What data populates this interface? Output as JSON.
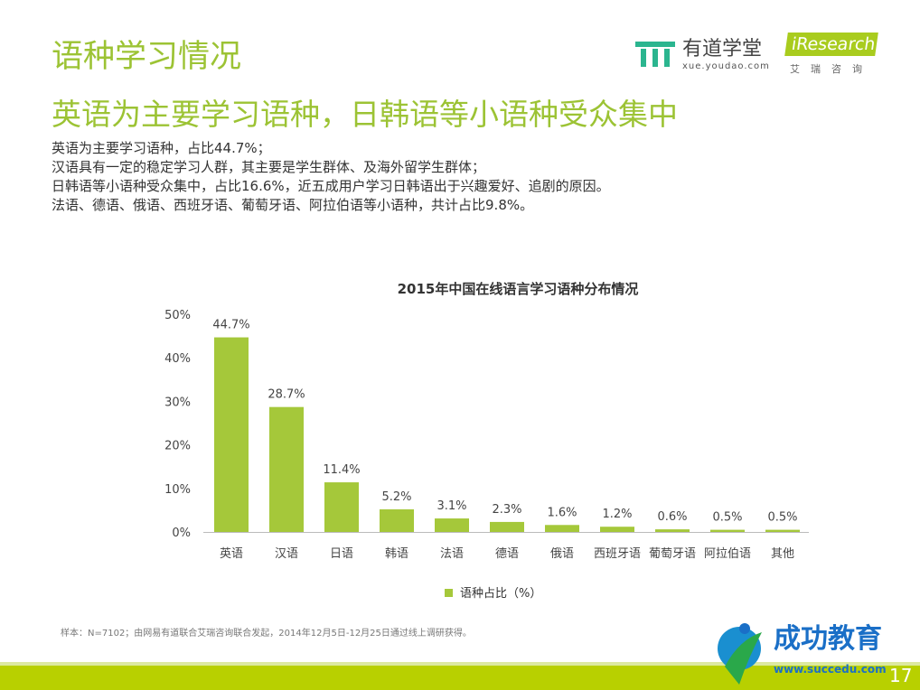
{
  "header": {
    "title": "语种学习情况",
    "subtitle": "英语为主要学习语种，日韩语等小语种受众集中"
  },
  "logos": {
    "youdao_name": "有道学堂",
    "youdao_url": "xue.youdao.com",
    "iresearch_name": "iResearch",
    "iresearch_cn": "艾瑞咨询"
  },
  "description": [
    "英语为主要学习语种，占比44.7%；",
    "汉语具有一定的稳定学习人群，其主要是学生群体、及海外留学生群体；",
    "日韩语等小语种受众集中，占比16.6%，近五成用户学习日韩语出于兴趣爱好、追剧的原因。",
    "法语、德语、俄语、西班牙语、葡萄牙语、阿拉伯语等小语种，共计占比9.8%。"
  ],
  "chart_data": {
    "type": "bar",
    "title": "2015年中国在线语言学习语种分布情况",
    "categories": [
      "英语",
      "汉语",
      "日语",
      "韩语",
      "法语",
      "德语",
      "俄语",
      "西班牙语",
      "葡萄牙语",
      "阿拉伯语",
      "其他"
    ],
    "series": [
      {
        "name": "语种占比（%）",
        "values": [
          44.7,
          28.7,
          11.4,
          5.2,
          3.1,
          2.3,
          1.6,
          1.2,
          0.6,
          0.5,
          0.5
        ]
      }
    ],
    "data_labels": [
      "44.7%",
      "28.7%",
      "11.4%",
      "5.2%",
      "3.1%",
      "2.3%",
      "1.6%",
      "1.2%",
      "0.6%",
      "0.5%",
      "0.5%"
    ],
    "yticks": [
      "0%",
      "10%",
      "20%",
      "30%",
      "40%",
      "50%"
    ],
    "ylim": [
      0,
      50
    ],
    "grid": false,
    "legend": "bottom",
    "color": "#a5c83a"
  },
  "footnote": "样本：N=7102；由网易有道联合艾瑞咨询联合发起，2014年12月5日-12月25日通过线上调研获得。",
  "brand": {
    "name": "成功教育",
    "url": "www.succedu.com",
    "page": "17"
  },
  "colors": {
    "accent": "#9cc334",
    "band": "#b8d000",
    "youdao": "#2bb58f"
  }
}
